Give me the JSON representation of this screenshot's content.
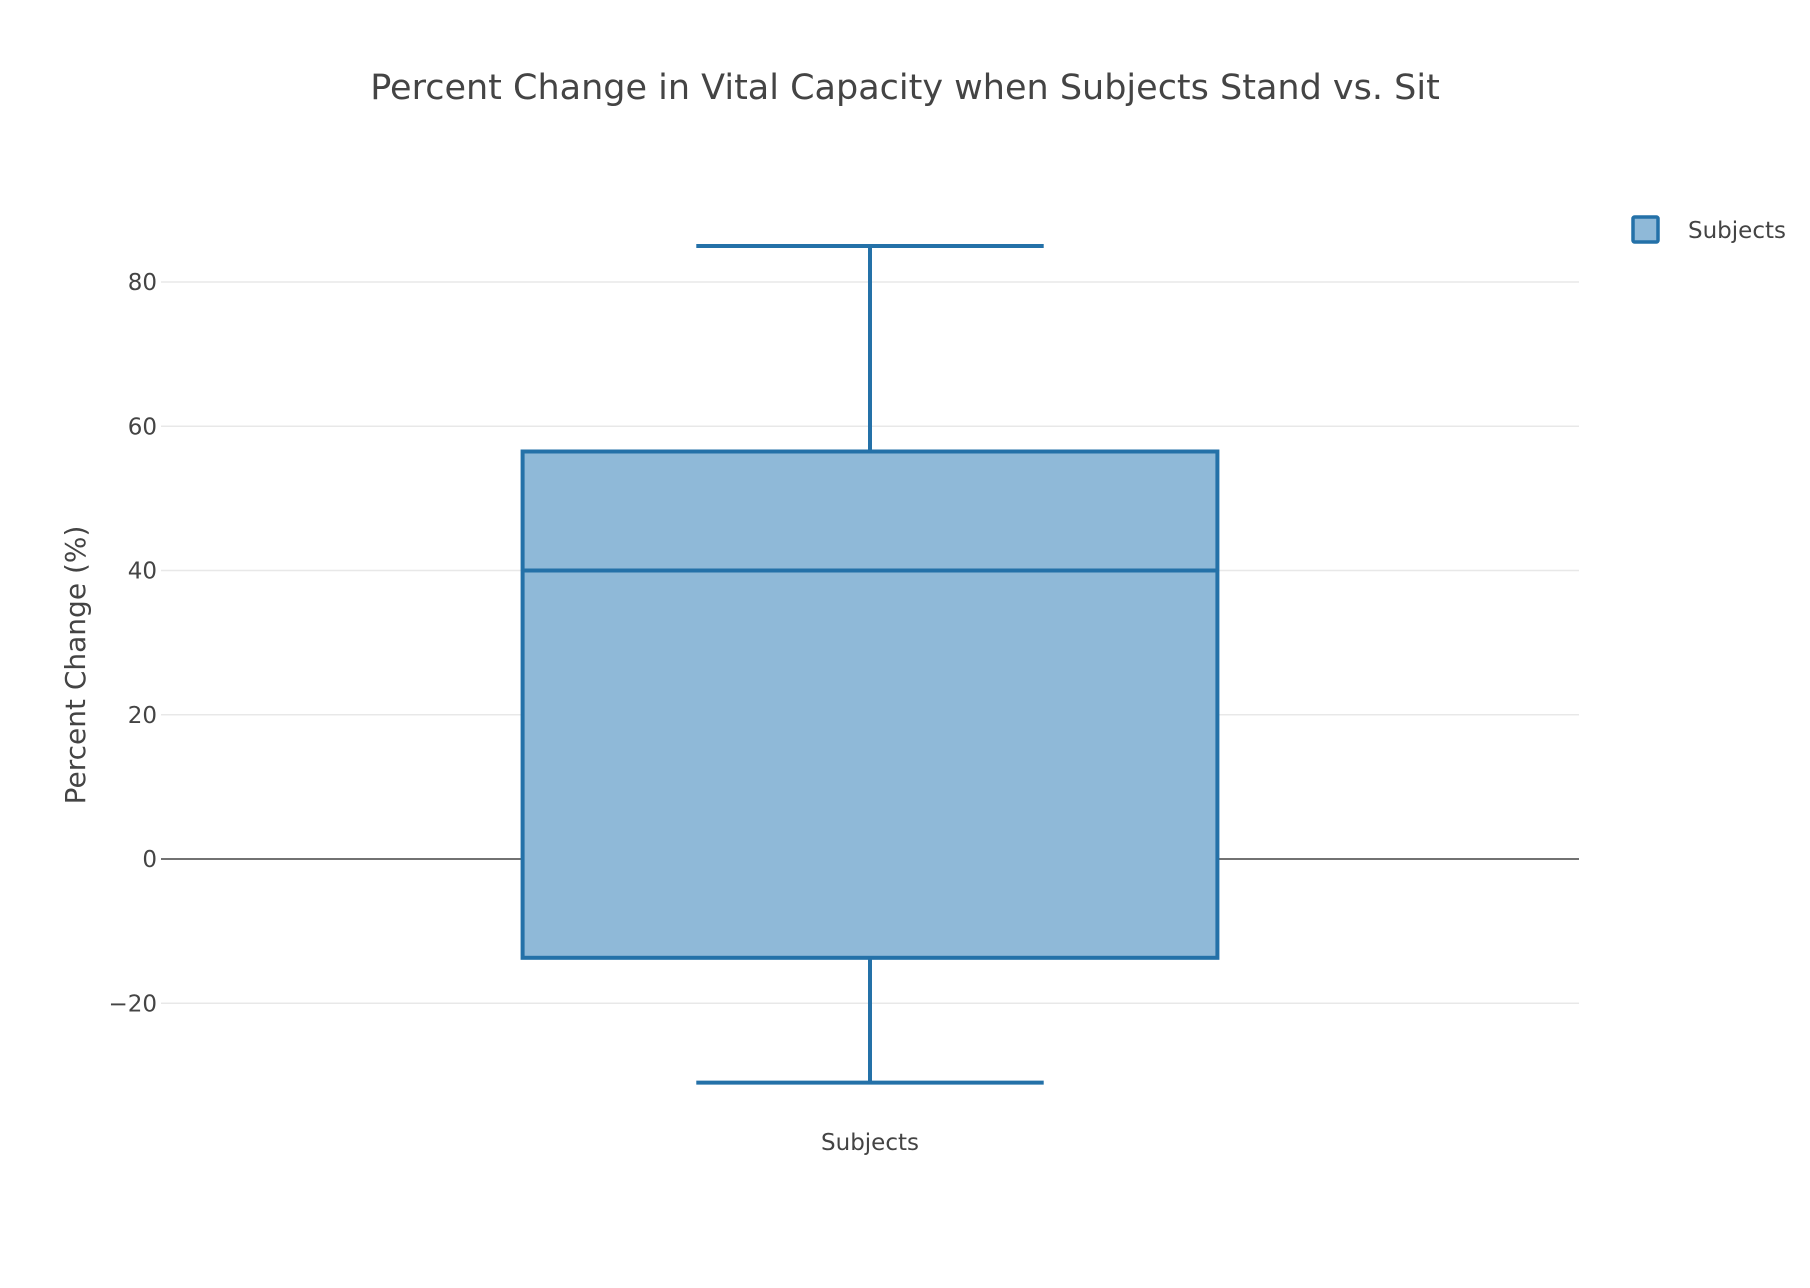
{
  "chart_data": {
    "type": "box",
    "title": "Percent Change in Vital Capacity when Subjects Stand vs. Sit",
    "xlabel": "",
    "ylabel": "Percent Change (%)",
    "categories": [
      "Subjects"
    ],
    "yticks": [
      -20,
      0,
      20,
      40,
      60,
      80
    ],
    "ytick_labels": [
      "−20",
      "0",
      "20",
      "40",
      "60",
      "80"
    ],
    "ylim": [
      -36,
      90
    ],
    "grid": true,
    "zero_line": true,
    "legend_position": "top-right",
    "series": [
      {
        "name": "Subjects",
        "min": -31,
        "q1": -13.7,
        "median": 40,
        "q3": 56.5,
        "max": 85
      }
    ],
    "colors": {
      "box_fill": "#8fb9d8",
      "box_line": "#2471a8",
      "grid": "#e8e8e8",
      "zero_line": "#444444"
    }
  }
}
